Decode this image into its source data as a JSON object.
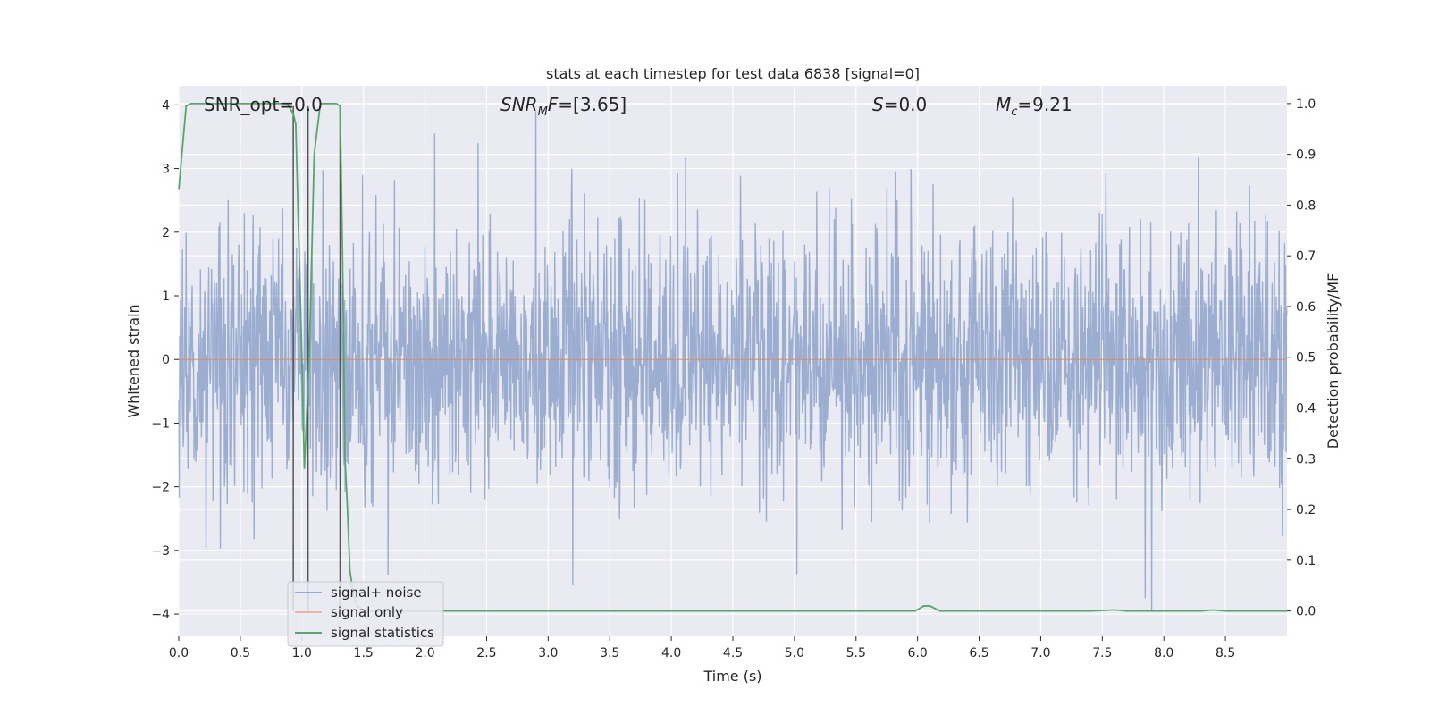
{
  "chart_data": {
    "type": "line",
    "title": "stats at each timestep for test data 6838 [signal=0]",
    "xlabel": "Time (s)",
    "ylabel_left": "Whitened strain",
    "ylabel_right": "Detection probability/MF",
    "xlim": [
      0.0,
      9.0
    ],
    "ylim_left": [
      -4.35,
      4.3
    ],
    "ylim_right": [
      -0.05,
      1.035
    ],
    "x_ticks": [
      "0.0",
      "0.5",
      "1.0",
      "1.5",
      "2.0",
      "2.5",
      "3.0",
      "3.5",
      "4.0",
      "4.5",
      "5.0",
      "5.5",
      "6.0",
      "6.5",
      "7.0",
      "7.5",
      "8.0",
      "8.5"
    ],
    "y_ticks_left": [
      "4",
      "3",
      "2",
      "1",
      "0",
      "−1",
      "−2",
      "−3",
      "−4"
    ],
    "y_ticks_right": [
      "1.0",
      "0.9",
      "0.8",
      "0.7",
      "0.6",
      "0.5",
      "0.4",
      "0.3",
      "0.2",
      "0.1",
      "0.0"
    ],
    "grid": true,
    "legend_position": "lower-left",
    "annotations": [
      {
        "text": "SNR_opt=0.0"
      },
      {
        "text": "SNR_MF=[3.65]"
      },
      {
        "text": "S=0.0"
      },
      {
        "text": "M_c=9.21"
      }
    ],
    "series": [
      {
        "name": "signal+ noise",
        "color": "#4c72b0",
        "axis": "left",
        "style": "whitened gaussian noise, values roughly between -3.9 and 3.9 sampled across 0-9 s",
        "extremes": [
          {
            "x": 2.08,
            "y": 3.55
          },
          {
            "x": 2.9,
            "y": 3.9
          },
          {
            "x": 7.85,
            "y": -3.75
          },
          {
            "x": 7.9,
            "y": -3.95
          },
          {
            "x": 3.2,
            "y": -3.55
          }
        ]
      },
      {
        "name": "signal only",
        "color": "#dd8452",
        "axis": "left",
        "x": [
          0.0,
          9.0
        ],
        "y": [
          0.0,
          0.0
        ]
      },
      {
        "name": "signal statistics",
        "color": "#55a868",
        "axis": "right",
        "x": [
          0.0,
          0.06,
          0.1,
          0.2,
          0.5,
          0.88,
          0.93,
          0.95,
          1.0,
          1.02,
          1.06,
          1.1,
          1.15,
          1.22,
          1.28,
          1.31,
          1.33,
          1.35,
          1.37,
          1.39,
          1.42,
          1.45,
          1.5,
          2.0,
          5.5,
          5.98,
          6.05,
          6.1,
          6.18,
          6.25,
          7.4,
          7.6,
          7.7,
          8.3,
          8.4,
          8.5,
          9.0
        ],
        "y": [
          0.83,
          0.995,
          1.0,
          1.0,
          1.0,
          1.0,
          0.98,
          0.96,
          0.5,
          0.28,
          0.5,
          0.9,
          1.0,
          1.0,
          1.0,
          0.995,
          0.7,
          0.3,
          0.2,
          0.08,
          0.03,
          0.01,
          0.0,
          0.0,
          0.0,
          0.0,
          0.01,
          0.01,
          0.0,
          0.0,
          0.0,
          0.002,
          0.0,
          0.0,
          0.002,
          0.0,
          0.0
        ]
      }
    ],
    "vertical_markers": {
      "color": "#555555",
      "x": [
        0.93,
        1.05,
        1.31
      ]
    }
  }
}
